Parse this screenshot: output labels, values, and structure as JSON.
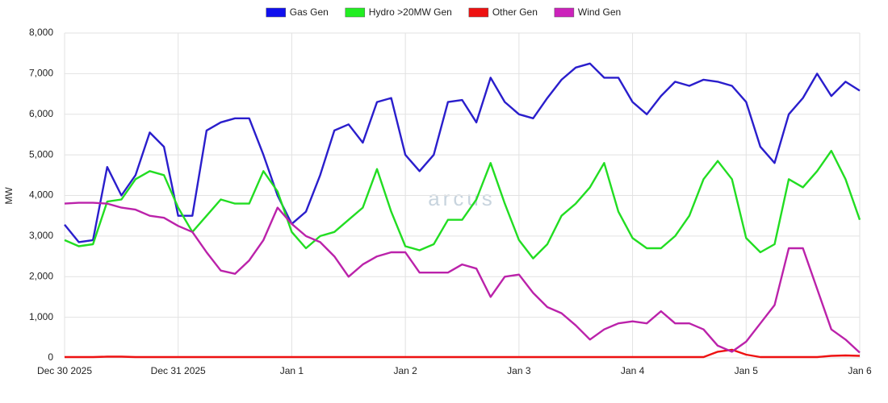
{
  "chart_data": {
    "type": "line",
    "ylabel": "MW",
    "watermark": "arcus",
    "x": [
      0,
      3,
      6,
      9,
      12,
      15,
      18,
      21,
      24,
      27,
      30,
      33,
      36,
      39,
      42,
      45,
      48,
      51,
      54,
      57,
      60,
      63,
      66,
      69,
      72,
      75,
      78,
      81,
      84,
      87,
      90,
      93,
      96,
      99,
      102,
      105,
      108,
      111,
      114,
      117,
      120,
      123,
      126,
      129,
      132,
      135,
      138,
      141,
      144,
      147,
      150,
      153,
      156,
      159,
      162,
      165,
      168
    ],
    "xlim": [
      0,
      168
    ],
    "xticks": [
      {
        "value": 0,
        "label": "Dec 30 2025"
      },
      {
        "value": 24,
        "label": "Dec 31 2025"
      },
      {
        "value": 48,
        "label": "Jan 1"
      },
      {
        "value": 72,
        "label": "Jan 2"
      },
      {
        "value": 96,
        "label": "Jan 3"
      },
      {
        "value": 120,
        "label": "Jan 4"
      },
      {
        "value": 144,
        "label": "Jan 5"
      },
      {
        "value": 168,
        "label": "Jan 6"
      }
    ],
    "ylim": [
      0,
      8000
    ],
    "yticks": [
      0,
      {
        "value": 1000,
        "label": "1,000"
      },
      {
        "value": 2000,
        "label": "2,000"
      },
      {
        "value": 3000,
        "label": "3,000"
      },
      {
        "value": 4000,
        "label": "4,000"
      },
      {
        "value": 5000,
        "label": "5,000"
      },
      {
        "value": 6000,
        "label": "6,000"
      },
      {
        "value": 7000,
        "label": "7,000"
      },
      {
        "value": 8000,
        "label": "8,000"
      }
    ],
    "grid": true,
    "legend": "top",
    "series": [
      {
        "name": "Gas Gen",
        "color": "#2a1ecc",
        "legend_color": "#1010ee",
        "values": [
          3280,
          2850,
          2900,
          4700,
          4000,
          4500,
          5550,
          5200,
          3500,
          3500,
          5600,
          5800,
          5900,
          5900,
          5000,
          4000,
          3300,
          3600,
          4500,
          5600,
          5750,
          5300,
          6300,
          6400,
          5000,
          4600,
          5000,
          6300,
          6350,
          5800,
          6900,
          6300,
          6000,
          5900,
          6400,
          6850,
          7150,
          7250,
          6900,
          6900,
          6300,
          6000,
          6450,
          6800,
          6700,
          6850,
          6800,
          6700,
          6300,
          5200,
          4800,
          6000,
          6400,
          7000,
          6450,
          6800,
          6580
        ]
      },
      {
        "name": "Hydro >20MW Gen",
        "color": "#22dd22",
        "legend_color": "#22ee22",
        "values": [
          2900,
          2750,
          2800,
          3850,
          3900,
          4400,
          4600,
          4500,
          3700,
          3100,
          3500,
          3900,
          3800,
          3800,
          4600,
          4100,
          3100,
          2700,
          3000,
          3100,
          3400,
          3700,
          4650,
          3600,
          2750,
          2650,
          2800,
          3400,
          3400,
          3900,
          4800,
          3800,
          2900,
          2450,
          2800,
          3500,
          3800,
          4200,
          4800,
          3600,
          2950,
          2700,
          2700,
          3000,
          3500,
          4400,
          4850,
          4400,
          2950,
          2600,
          2800,
          4400,
          4200,
          4600,
          5100,
          4400,
          3400
        ]
      },
      {
        "name": "Other Gen",
        "color": "#ee1111",
        "legend_color": "#ee1111",
        "values": [
          20,
          20,
          20,
          30,
          30,
          20,
          20,
          20,
          20,
          20,
          20,
          20,
          20,
          20,
          20,
          20,
          20,
          20,
          20,
          20,
          20,
          20,
          20,
          20,
          20,
          20,
          20,
          20,
          20,
          20,
          20,
          20,
          20,
          20,
          20,
          20,
          20,
          20,
          20,
          20,
          20,
          20,
          20,
          20,
          20,
          20,
          150,
          200,
          80,
          20,
          20,
          20,
          20,
          20,
          50,
          60,
          50
        ]
      },
      {
        "name": "Wind Gen",
        "color": "#bb22aa",
        "legend_color": "#cc22bb",
        "values": [
          3800,
          3820,
          3820,
          3800,
          3700,
          3650,
          3500,
          3450,
          3250,
          3100,
          2600,
          2150,
          2070,
          2400,
          2900,
          3700,
          3300,
          3000,
          2850,
          2500,
          2000,
          2300,
          2500,
          2600,
          2600,
          2100,
          2100,
          2100,
          2300,
          2200,
          1500,
          2000,
          2050,
          1600,
          1250,
          1100,
          800,
          450,
          700,
          850,
          900,
          850,
          1150,
          850,
          850,
          700,
          300,
          150,
          400,
          850,
          1300,
          2700,
          2700,
          1700,
          700,
          450,
          130
        ]
      }
    ]
  }
}
